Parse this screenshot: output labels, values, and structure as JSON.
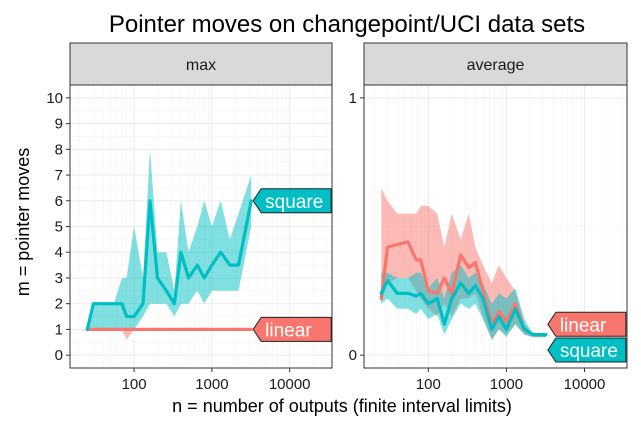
{
  "chart_data": {
    "type": "line",
    "title": "Pointer moves on changepoint/UCI data sets",
    "xlabel": "n = number of outputs (finite interval limits)",
    "ylabel": "m = pointer moves",
    "x_scale": "log10",
    "x_ticks": [
      100,
      1000,
      10000
    ],
    "x_tick_labels": [
      "100",
      "1000",
      "10000"
    ],
    "xlim": [
      15,
      35000
    ],
    "grid": true,
    "colors": {
      "linear": "#F8766D",
      "square": "#00BFC4",
      "strip_bg": "#D9D9D9",
      "panel_border": "#333333",
      "grid": "#EBEBEB"
    },
    "panels": [
      {
        "strip": "max",
        "ylim": [
          -0.5,
          10.5
        ],
        "y_ticks": [
          0,
          1,
          2,
          3,
          4,
          5,
          6,
          7,
          8,
          9,
          10
        ],
        "y_tick_labels": [
          "0",
          "1",
          "2",
          "3",
          "4",
          "5",
          "6",
          "7",
          "8",
          "9",
          "10"
        ],
        "series": [
          {
            "name": "linear",
            "label": "linear",
            "x": [
              25,
              35,
              50,
              70,
              80,
              100,
              130,
              160,
              200,
              260,
              330,
              400,
              500,
              650,
              800,
              1000,
              1300,
              1700,
              2200,
              3200
            ],
            "values": [
              1,
              1,
              1,
              1,
              1,
              1,
              1,
              1,
              1,
              1,
              1,
              1,
              1,
              1,
              1,
              1,
              1,
              1,
              1,
              1
            ],
            "lower": [
              1,
              1,
              1,
              1,
              0.6,
              1,
              1,
              1,
              1,
              1,
              1,
              1,
              1,
              1,
              1,
              1,
              1,
              1,
              1,
              1
            ],
            "upper": [
              1,
              1,
              1,
              1,
              1,
              1,
              1,
              1,
              1,
              1,
              1,
              1,
              1,
              1,
              1,
              1,
              1,
              1,
              1,
              1
            ]
          },
          {
            "name": "square",
            "label": "square",
            "x": [
              25,
              30,
              40,
              55,
              70,
              80,
              100,
              130,
              160,
              200,
              260,
              330,
              400,
              500,
              650,
              800,
              1000,
              1300,
              1700,
              2200,
              3200
            ],
            "values": [
              1,
              2,
              2,
              2,
              2,
              1.5,
              1.5,
              2,
              6,
              3,
              2.5,
              2,
              4,
              3,
              3.5,
              3,
              3.5,
              4,
              3.5,
              3.5,
              6
            ],
            "lower": [
              1,
              1,
              1,
              1,
              1,
              1,
              1,
              1.5,
              2,
              2,
              2,
              1.5,
              2,
              2,
              2.5,
              2,
              2.5,
              2.5,
              2.5,
              2.5,
              5
            ],
            "upper": [
              1,
              2,
              2,
              2,
              3,
              3,
              5,
              3,
              8,
              4,
              4,
              2.5,
              6,
              4,
              5,
              6,
              5,
              6,
              4.5,
              5.5,
              7
            ]
          }
        ]
      },
      {
        "strip": "average",
        "ylim": [
          -0.05,
          1.05
        ],
        "y_ticks": [
          0,
          1
        ],
        "y_tick_labels": [
          "0",
          "1"
        ],
        "series": [
          {
            "name": "linear",
            "label": "linear",
            "x": [
              25,
              30,
              40,
              55,
              70,
              80,
              100,
              130,
              160,
              200,
              260,
              330,
              400,
              500,
              650,
              800,
              1000,
              1300,
              1700,
              2200,
              3200
            ],
            "values": [
              0.22,
              0.42,
              0.43,
              0.44,
              0.37,
              0.37,
              0.25,
              0.24,
              0.3,
              0.24,
              0.39,
              0.34,
              0.36,
              0.25,
              0.12,
              0.17,
              0.13,
              0.2,
              0.1,
              0.08,
              0.08
            ],
            "lower": [
              0.2,
              0.28,
              0.3,
              0.3,
              0.25,
              0.22,
              0.18,
              0.15,
              0.2,
              0.15,
              0.22,
              0.22,
              0.24,
              0.15,
              0.06,
              0.1,
              0.08,
              0.12,
              0.08,
              0.07,
              0.07
            ],
            "upper": [
              0.65,
              0.6,
              0.55,
              0.55,
              0.55,
              0.58,
              0.58,
              0.55,
              0.42,
              0.55,
              0.45,
              0.55,
              0.42,
              0.35,
              0.28,
              0.35,
              0.3,
              0.25,
              0.12,
              0.08,
              0.08
            ]
          },
          {
            "name": "square",
            "label": "square",
            "x": [
              25,
              30,
              40,
              55,
              70,
              80,
              100,
              130,
              160,
              200,
              260,
              330,
              400,
              500,
              650,
              800,
              1000,
              1300,
              1700,
              2200,
              3200
            ],
            "values": [
              0.24,
              0.29,
              0.24,
              0.24,
              0.23,
              0.24,
              0.2,
              0.22,
              0.12,
              0.22,
              0.28,
              0.24,
              0.27,
              0.22,
              0.1,
              0.15,
              0.1,
              0.18,
              0.1,
              0.08,
              0.08
            ],
            "lower": [
              0.2,
              0.22,
              0.18,
              0.18,
              0.16,
              0.18,
              0.14,
              0.16,
              0.08,
              0.14,
              0.2,
              0.18,
              0.2,
              0.14,
              0.06,
              0.1,
              0.07,
              0.12,
              0.08,
              0.07,
              0.07
            ],
            "upper": [
              0.32,
              0.32,
              0.3,
              0.3,
              0.32,
              0.32,
              0.26,
              0.3,
              0.22,
              0.32,
              0.35,
              0.3,
              0.32,
              0.28,
              0.2,
              0.24,
              0.22,
              0.26,
              0.14,
              0.08,
              0.08
            ]
          }
        ]
      }
    ]
  }
}
